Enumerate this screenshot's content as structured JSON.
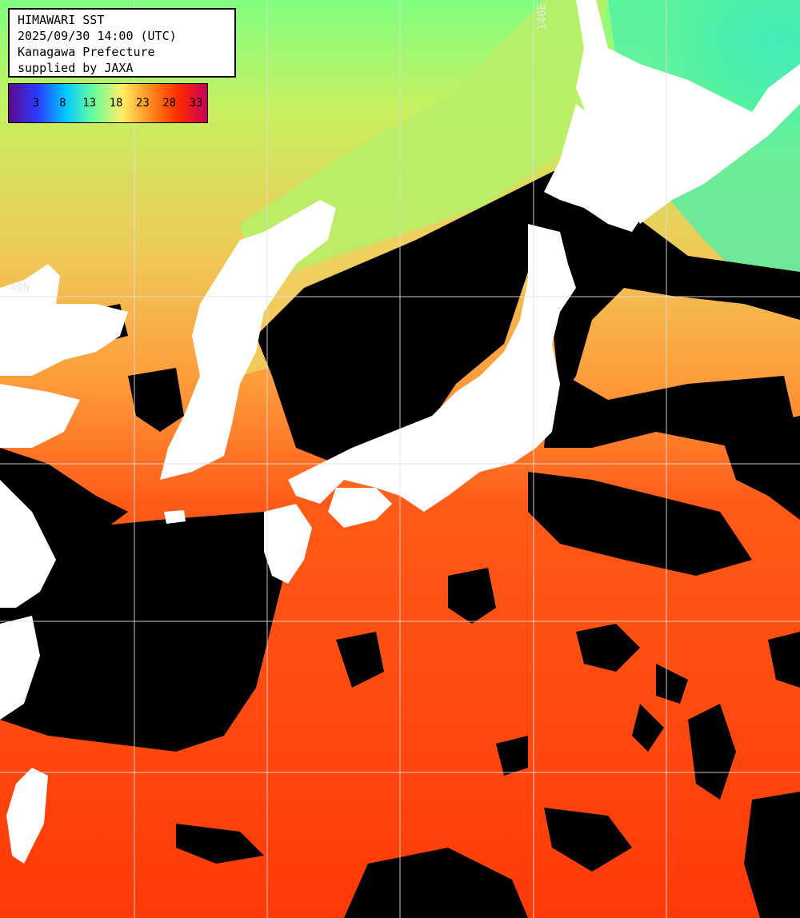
{
  "info": {
    "line1": "HIMAWARI SST",
    "line2": "2025/09/30 14:00 (UTC)",
    "line3": "Kanagawa Prefecture",
    "line4": "supplied by JAXA"
  },
  "scale": {
    "ticks": [
      "3",
      "8",
      "13",
      "18",
      "23",
      "28",
      "33"
    ],
    "gradient_colors": [
      "#5a0a8a",
      "#2a3aff",
      "#00c8ff",
      "#6bff9a",
      "#ffee66",
      "#ff8a1a",
      "#ff2a00",
      "#c8005a"
    ]
  },
  "grid_labels": {
    "lon": "140E",
    "lat": "40N"
  },
  "colors": {
    "cloud": "#000000",
    "land": "#ffffff",
    "grid": "#dddddd",
    "warm": "#ff4a10",
    "mid": "#ffa040",
    "cool": "#c8f060",
    "cold": "#30e8c0"
  }
}
